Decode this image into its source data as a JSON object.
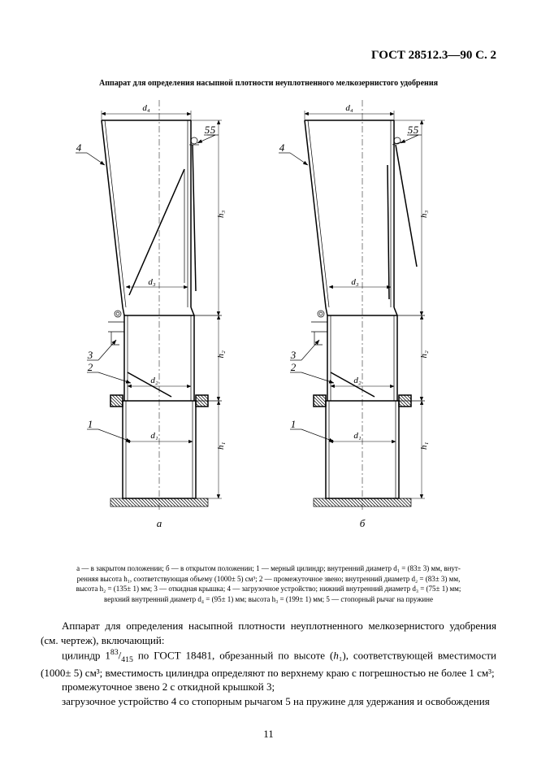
{
  "header": "ГОСТ 28512.3—90 С. 2",
  "figure_title": "Аппарат для определения насыпной плотности неуплотненного мелкозернистого удобрения",
  "diagram": {
    "type": "diagram",
    "subfig_labels": {
      "left": "а",
      "right": "б"
    },
    "part_labels": [
      "1",
      "2",
      "3",
      "4",
      "5"
    ],
    "dim_labels": {
      "d1": "d₁",
      "d2": "d₂",
      "d3": "d₃",
      "d4": "d₄",
      "h1": "h₁",
      "h2": "h₂",
      "h3": "h₃"
    },
    "stroke_color": "#000000",
    "background_color": "#ffffff",
    "line_width_main": 1.5,
    "line_width_thin": 0.7,
    "line_width_dim": 0.5,
    "font_label_size": 12,
    "font_subfig_size": 13
  },
  "caption_parts": {
    "p1": "а — в закрытом положении; б — в открытом положении; 1 — мерный цилиндр; внутренний диаметр d₁ = (83± 3) мм, внут-",
    "p2": "ренняя высота h₁, соответствующая объему (1000± 5) см³; 2 — промежуточное звено; внутренний диаметр d₂ = (83± 3) мм,",
    "p3": "высота h₂ = (135± 1) мм; 3 — откидная крышка; 4 — загрузочное устройство; нижний внутренний диаметр d₃ = (75± 1) мм;",
    "p4": "верхний внутренний диаметр d₄ = (95± 1) мм; высота h₃ = (199± 1) мм; 5 — стопорный рычаг на пружине"
  },
  "body": {
    "line1": "Аппарат для определения насыпной плотности неуплотненного мелкозернистого удобрения (см. чертеж), включающий:",
    "line2_a": "цилиндр 1",
    "line2_sup": "83",
    "line2_b": "/",
    "line2_sub": "415",
    "line2_c": " по ГОСТ 18481, обрезанный по высоте (",
    "line2_d": "h",
    "line2_e": "₁), соответствующей вместимости (1000± 5) см³; вместимость цилиндра определяют по верхнему краю с погрешностью не более 1 см³;",
    "line3": "промежуточное звено 2 с откидной крышкой 3;",
    "line4": "загрузочное устройство 4 со стопорным рычагом 5 на пружине для удержания и освобождения"
  },
  "page_number": "11"
}
